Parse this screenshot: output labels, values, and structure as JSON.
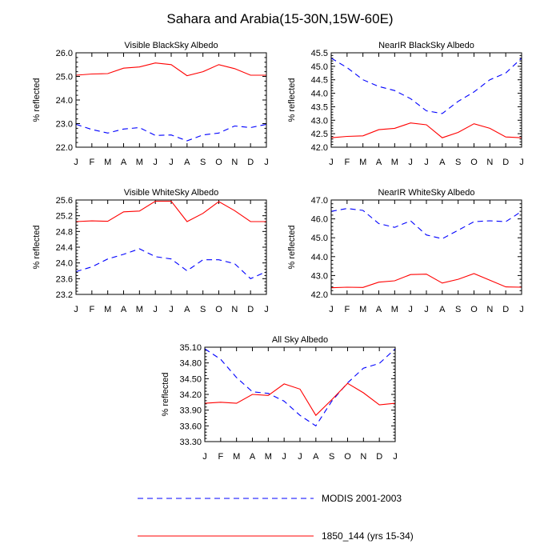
{
  "title": "Sahara and Arabia(15-30N,15W-60E)",
  "months": [
    "J",
    "F",
    "M",
    "A",
    "M",
    "J",
    "J",
    "A",
    "S",
    "O",
    "N",
    "D",
    "J"
  ],
  "legend": [
    {
      "label": "MODIS 2001-2003",
      "color": "#0000ff",
      "dash": "dashed"
    },
    {
      "label": "1850_144 (yrs 15-34)",
      "color": "#ff0000",
      "dash": "solid"
    }
  ],
  "colors": {
    "modis": "#0000ff",
    "model": "#ff0000"
  },
  "chart_data": [
    {
      "type": "line",
      "title": "Visible BlackSky Albedo",
      "ylabel": "% reflected",
      "ylim": [
        22.0,
        26.0
      ],
      "yticks": [
        22.0,
        23.0,
        24.0,
        25.0,
        26.0
      ],
      "ytick_labels": [
        "22.0",
        "23.0",
        "24.0",
        "25.0",
        "26.0"
      ],
      "categories": [
        "J",
        "F",
        "M",
        "A",
        "M",
        "J",
        "J",
        "A",
        "S",
        "O",
        "N",
        "D",
        "J"
      ],
      "series": [
        {
          "name": "MODIS 2001-2003",
          "values": [
            22.97,
            22.75,
            22.6,
            22.77,
            22.83,
            22.5,
            22.52,
            22.27,
            22.52,
            22.6,
            22.9,
            22.83,
            22.97
          ]
        },
        {
          "name": "1850_144 (yrs 15-34)",
          "values": [
            25.05,
            25.1,
            25.12,
            25.35,
            25.4,
            25.57,
            25.5,
            25.03,
            25.2,
            25.5,
            25.33,
            25.05,
            25.05
          ]
        }
      ]
    },
    {
      "type": "line",
      "title": "NearIR BlackSky Albedo",
      "ylabel": "% reflected",
      "ylim": [
        42.0,
        45.5
      ],
      "yticks": [
        42.0,
        42.5,
        43.0,
        43.5,
        44.0,
        44.5,
        45.0,
        45.5
      ],
      "ytick_labels": [
        "42.0",
        "42.5",
        "43.0",
        "43.5",
        "44.0",
        "44.5",
        "45.0",
        "45.5"
      ],
      "categories": [
        "J",
        "F",
        "M",
        "A",
        "M",
        "J",
        "J",
        "A",
        "S",
        "O",
        "N",
        "D",
        "J"
      ],
      "series": [
        {
          "name": "MODIS 2001-2003",
          "values": [
            45.3,
            44.95,
            44.5,
            44.25,
            44.1,
            43.8,
            43.35,
            43.25,
            43.7,
            44.05,
            44.5,
            44.75,
            45.3
          ]
        },
        {
          "name": "1850_144 (yrs 15-34)",
          "values": [
            42.35,
            42.4,
            42.42,
            42.65,
            42.7,
            42.9,
            42.83,
            42.35,
            42.55,
            42.87,
            42.7,
            42.38,
            42.35
          ]
        }
      ]
    },
    {
      "type": "line",
      "title": "Visible WhiteSky Albedo",
      "ylabel": "% reflected",
      "ylim": [
        23.2,
        25.6
      ],
      "yticks": [
        23.2,
        23.6,
        24.0,
        24.4,
        24.8,
        25.2,
        25.6
      ],
      "ytick_labels": [
        "23.2",
        "23.6",
        "24.0",
        "24.4",
        "24.8",
        "25.2",
        "25.6"
      ],
      "categories": [
        "J",
        "F",
        "M",
        "A",
        "M",
        "J",
        "J",
        "A",
        "S",
        "O",
        "N",
        "D",
        "J"
      ],
      "series": [
        {
          "name": "MODIS 2001-2003",
          "values": [
            23.78,
            23.9,
            24.1,
            24.22,
            24.36,
            24.16,
            24.1,
            23.8,
            24.08,
            24.08,
            23.98,
            23.6,
            23.78
          ]
        },
        {
          "name": "1850_144 (yrs 15-34)",
          "values": [
            25.05,
            25.07,
            25.06,
            25.3,
            25.32,
            25.57,
            25.57,
            25.05,
            25.26,
            25.56,
            25.33,
            25.05,
            25.05
          ]
        }
      ]
    },
    {
      "type": "line",
      "title": "NearIR WhiteSky Albedo",
      "ylabel": "% reflected",
      "ylim": [
        42.0,
        47.0
      ],
      "yticks": [
        42.0,
        43.0,
        44.0,
        45.0,
        46.0,
        47.0
      ],
      "ytick_labels": [
        "42.0",
        "43.0",
        "44.0",
        "45.0",
        "46.0",
        "47.0"
      ],
      "categories": [
        "J",
        "F",
        "M",
        "A",
        "M",
        "J",
        "J",
        "A",
        "S",
        "O",
        "N",
        "D",
        "J"
      ],
      "series": [
        {
          "name": "MODIS 2001-2003",
          "values": [
            46.4,
            46.55,
            46.45,
            45.75,
            45.55,
            45.9,
            45.15,
            44.95,
            45.4,
            45.85,
            45.9,
            45.85,
            46.4
          ]
        },
        {
          "name": "1850_144 (yrs 15-34)",
          "values": [
            42.35,
            42.38,
            42.37,
            42.65,
            42.72,
            43.05,
            43.07,
            42.6,
            42.8,
            43.1,
            42.75,
            42.4,
            42.38
          ]
        }
      ]
    },
    {
      "type": "line",
      "title": "All Sky Albedo",
      "ylabel": "% reflected",
      "ylim": [
        33.3,
        35.1
      ],
      "yticks": [
        33.3,
        33.6,
        33.9,
        34.2,
        34.5,
        34.8,
        35.1
      ],
      "ytick_labels": [
        "33.30",
        "33.60",
        "33.90",
        "34.20",
        "34.50",
        "34.80",
        "35.10"
      ],
      "categories": [
        "J",
        "F",
        "M",
        "A",
        "M",
        "J",
        "J",
        "A",
        "S",
        "O",
        "N",
        "D",
        "J"
      ],
      "series": [
        {
          "name": "MODIS 2001-2003",
          "values": [
            35.07,
            34.87,
            34.52,
            34.25,
            34.22,
            34.07,
            33.8,
            33.6,
            34.07,
            34.42,
            34.7,
            34.79,
            35.07
          ]
        },
        {
          "name": "1850_144 (yrs 15-34)",
          "values": [
            34.03,
            34.05,
            34.03,
            34.2,
            34.18,
            34.4,
            34.3,
            33.8,
            34.1,
            34.41,
            34.23,
            34.0,
            34.03
          ]
        }
      ]
    }
  ]
}
